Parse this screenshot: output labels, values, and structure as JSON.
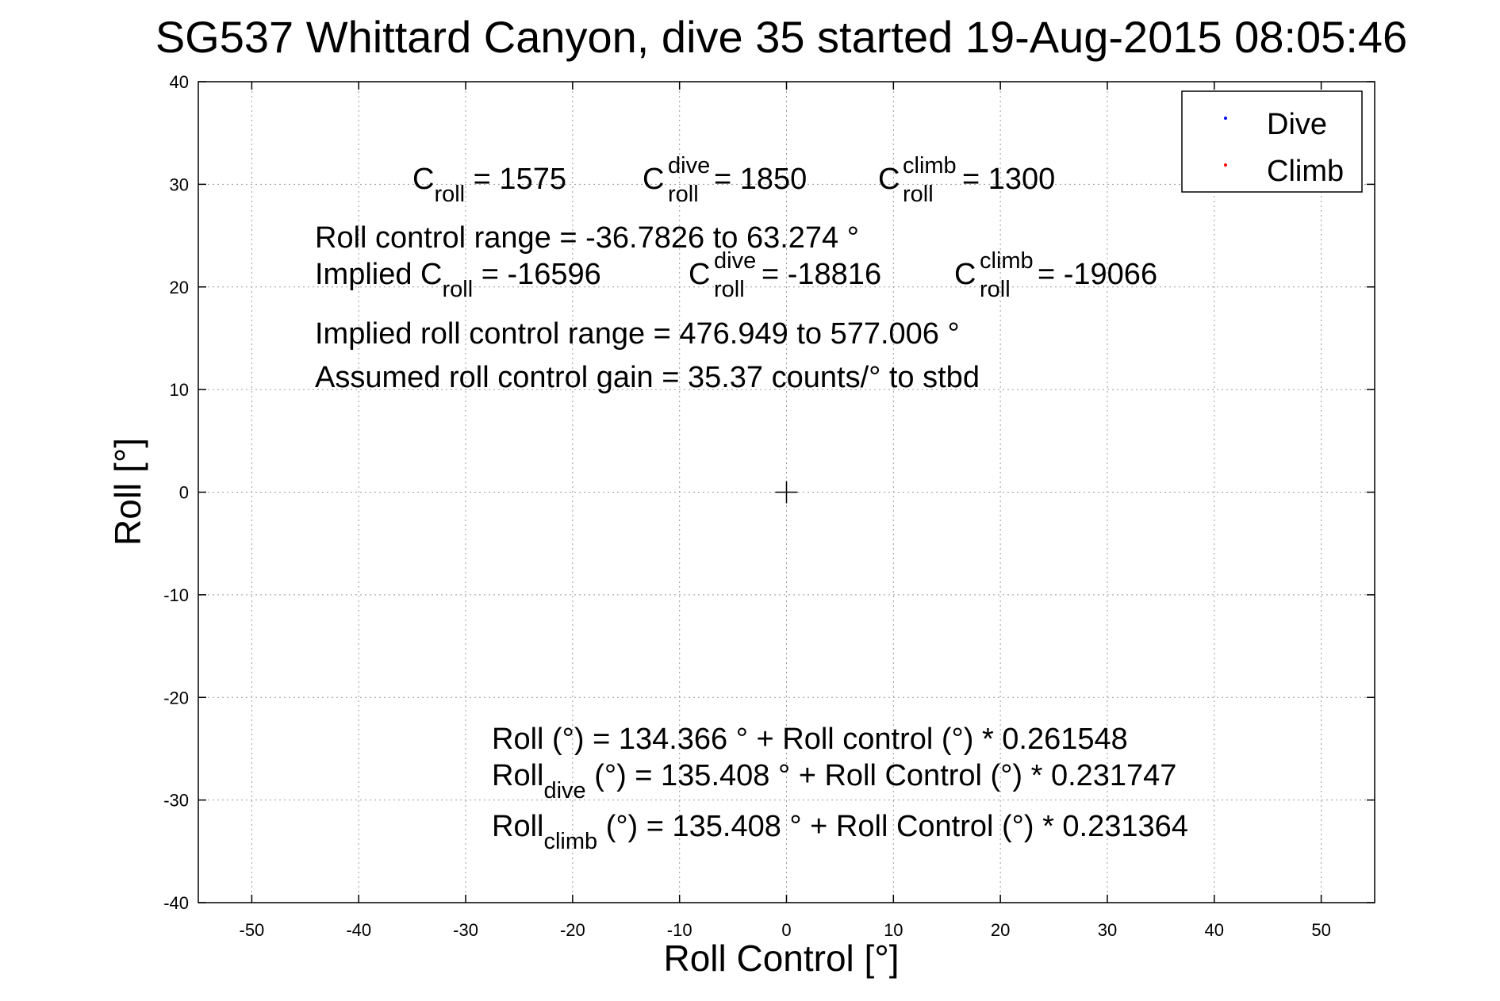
{
  "chart_data": {
    "type": "scatter",
    "title": "SG537 Whittard Canyon, dive 35 started 19-Aug-2015 08:05:46",
    "xlabel": "Roll Control [°]",
    "ylabel": "Roll [°]",
    "xlim": [
      -55,
      55
    ],
    "ylim": [
      -40,
      40
    ],
    "xticks": [
      -50,
      -40,
      -30,
      -20,
      -10,
      0,
      10,
      20,
      30,
      40,
      50
    ],
    "yticks": [
      -40,
      -30,
      -20,
      -10,
      0,
      10,
      20,
      30,
      40
    ],
    "grid": true,
    "legend_position": "top-right",
    "series": [
      {
        "name": "Dive",
        "color": "#0000ff",
        "marker": "dot",
        "points": []
      },
      {
        "name": "Climb",
        "color": "#ff0000",
        "marker": "dot",
        "points": []
      }
    ],
    "markers": [
      {
        "label": "+",
        "x": 0,
        "y": 0
      }
    ],
    "annotations": {
      "c_roll": {
        "base": "C",
        "sub": "roll",
        "value": " = 1575"
      },
      "c_roll_dive": {
        "base": "C",
        "sup": "dive",
        "sub": "roll",
        "value": " = 1850"
      },
      "c_roll_climb": {
        "base": "C",
        "sup": "climb",
        "sub": "roll",
        "value": " = 1300"
      },
      "range_text": "Roll control range = -36.7826 to 63.274 °",
      "implied_prefix": "Implied C",
      "implied_c_roll": {
        "sub": "roll",
        "value": " = -16596"
      },
      "implied_c_dive": {
        "base": "C",
        "sup": "dive",
        "sub": "roll",
        "value": " = -18816"
      },
      "implied_c_climb": {
        "base": "C",
        "sup": "climb",
        "sub": "roll",
        "value": " = -19066"
      },
      "implied_range_text": "Implied roll control range = 476.949 to 577.006 °",
      "gain_text": "Assumed roll control gain = 35.37 counts/° to stbd",
      "fit_text": "Roll (°) = 134.366 ° + Roll control (°) * 0.261548",
      "fit_dive": {
        "base": "Roll",
        "sub": "dive",
        "value": " (°) = 135.408 ° + Roll Control (°) * 0.231747"
      },
      "fit_climb": {
        "base": "Roll",
        "sub": "climb",
        "value": " (°) = 135.408 ° + Roll Control (°) * 0.231364"
      }
    }
  }
}
